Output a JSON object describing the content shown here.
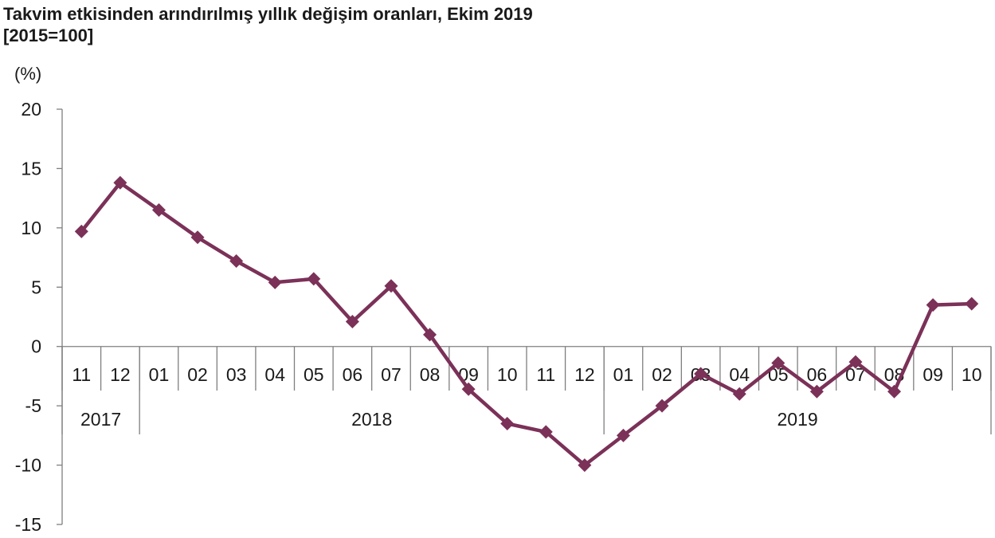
{
  "chart_data": {
    "type": "line",
    "title": "Takvim etkisinden arındırılmış yıllık değişim oranları, Ekim 2019",
    "subtitle": "[2015=100]",
    "ylabel": "(%)",
    "ylim": [
      -15,
      20
    ],
    "yticks": [
      20,
      15,
      10,
      5,
      0,
      -5,
      -10,
      -15
    ],
    "categories": [
      "11",
      "12",
      "01",
      "02",
      "03",
      "04",
      "05",
      "06",
      "07",
      "08",
      "09",
      "10",
      "11",
      "12",
      "01",
      "02",
      "03",
      "04",
      "05",
      "06",
      "07",
      "08",
      "09",
      "10"
    ],
    "year_groups": [
      {
        "label": "2017",
        "span": 2
      },
      {
        "label": "2018",
        "span": 12
      },
      {
        "label": "2019",
        "span": 10
      }
    ],
    "series": [
      {
        "values": [
          9.7,
          13.8,
          11.5,
          9.2,
          7.2,
          5.4,
          5.7,
          2.1,
          5.1,
          1.0,
          -3.6,
          -6.5,
          -7.2,
          -10.0,
          -7.5,
          -5.0,
          -2.3,
          -4.0,
          -1.4,
          -3.8,
          -1.3,
          -3.8,
          3.5,
          3.6
        ],
        "color": "#7b3158"
      }
    ],
    "grid": false,
    "legend": "none"
  }
}
